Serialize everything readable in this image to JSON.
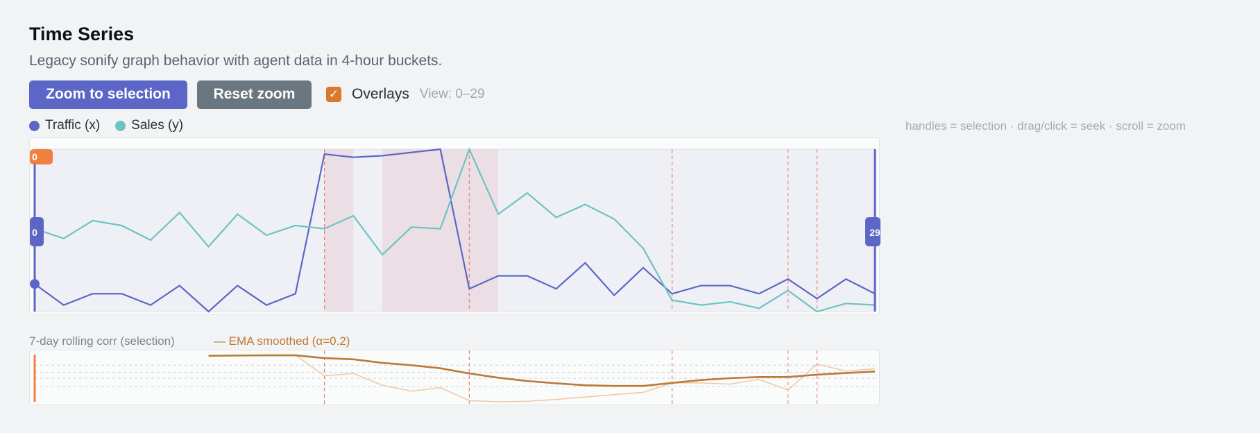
{
  "header": {
    "title": "Time Series",
    "subtitle": "Legacy sonify graph behavior with agent data in 4-hour buckets."
  },
  "toolbar": {
    "zoom_label": "Zoom to selection",
    "reset_label": "Reset zoom",
    "overlays_checked": true,
    "overlays_label": "Overlays",
    "view_label": "View: 0–29"
  },
  "legend": {
    "items": [
      {
        "label": "Traffic (x)",
        "color": "#5b66c6"
      },
      {
        "label": "Sales (y)",
        "color": "#6cc4c1"
      }
    ]
  },
  "hint": "handles = selection · drag/click = seek · scroll = zoom",
  "main_chart": {
    "playhead_label": "0",
    "handle_start_label": "0",
    "handle_end_label": "29",
    "colors": {
      "traffic": "#5b66c6",
      "sales": "#6cc4c1",
      "marker": "#e8826e",
      "shade": "#ead8df",
      "accent": "#f08040"
    }
  },
  "chart_data": [
    {
      "type": "line",
      "x": [
        0,
        1,
        2,
        3,
        4,
        5,
        6,
        7,
        8,
        9,
        10,
        11,
        12,
        13,
        14,
        15,
        16,
        17,
        18,
        19,
        20,
        21,
        22,
        23,
        24,
        25,
        26,
        27,
        28,
        29
      ],
      "series": [
        {
          "name": "Traffic (x)",
          "values": [
            17,
            4,
            11,
            11,
            4,
            16,
            0,
            16,
            4,
            11,
            97,
            95,
            96,
            98,
            100,
            14,
            22,
            22,
            14,
            30,
            10,
            27,
            11,
            16,
            16,
            11,
            20,
            8,
            20,
            11
          ]
        },
        {
          "name": "Sales (y)",
          "values": [
            51,
            45,
            56,
            53,
            44,
            61,
            40,
            60,
            47,
            53,
            51,
            59,
            35,
            52,
            51,
            100,
            60,
            73,
            58,
            66,
            57,
            39,
            7,
            4,
            6,
            2,
            13,
            0,
            5,
            4
          ]
        }
      ],
      "shaded_ranges": [
        [
          10,
          11
        ],
        [
          12,
          16
        ]
      ],
      "marker_lines": [
        10,
        15,
        22,
        26,
        27
      ],
      "ylim": [
        0,
        100
      ]
    },
    {
      "type": "line",
      "title": "7-day rolling corr (selection)",
      "x": [
        6,
        7,
        8,
        9,
        10,
        11,
        12,
        13,
        14,
        15,
        16,
        17,
        18,
        19,
        20,
        21,
        22,
        23,
        24,
        25,
        26,
        27,
        28,
        29
      ],
      "series": [
        {
          "name": "raw",
          "values": [
            0.95,
            0.96,
            0.97,
            0.98,
            0.1,
            0.2,
            -0.3,
            -0.55,
            -0.4,
            -0.95,
            -1.0,
            -0.98,
            -0.9,
            -0.8,
            -0.7,
            -0.6,
            -0.2,
            -0.2,
            -0.25,
            -0.05,
            -0.5,
            0.6,
            0.3,
            0.4
          ]
        },
        {
          "name": "EMA smoothed (α=0.2)",
          "values": [
            0.95,
            0.96,
            0.97,
            0.97,
            0.85,
            0.8,
            0.65,
            0.55,
            0.42,
            0.2,
            0.02,
            -0.12,
            -0.22,
            -0.3,
            -0.33,
            -0.33,
            -0.2,
            -0.08,
            0.0,
            0.05,
            0.05,
            0.15,
            0.22,
            0.28
          ]
        }
      ],
      "ema_label": "— EMA smoothed (α=0.2)",
      "marker_lines": [
        10,
        15,
        22,
        26,
        27
      ],
      "ylim": [
        -1,
        1
      ]
    }
  ]
}
